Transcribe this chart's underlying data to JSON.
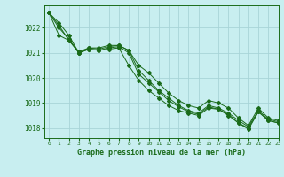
{
  "title": "Graphe pression niveau de la mer (hPa)",
  "bg_color": "#c8eef0",
  "grid_color": "#a8d4d8",
  "line_color": "#1a6b1a",
  "marker_color": "#1a6b1a",
  "xlim": [
    -0.5,
    23
  ],
  "ylim": [
    1017.6,
    1022.9
  ],
  "yticks": [
    1018,
    1019,
    1020,
    1021,
    1022
  ],
  "xticks": [
    0,
    1,
    2,
    3,
    4,
    5,
    6,
    7,
    8,
    9,
    10,
    11,
    12,
    13,
    14,
    15,
    16,
    17,
    18,
    19,
    20,
    21,
    22,
    23
  ],
  "series": [
    [
      1022.6,
      1022.2,
      1021.7,
      1021.0,
      1021.2,
      1021.2,
      1021.3,
      1021.3,
      1021.1,
      1020.5,
      1020.2,
      1019.8,
      1019.4,
      1019.1,
      1018.9,
      1018.8,
      1019.1,
      1019.0,
      1018.8,
      1018.4,
      1018.1,
      1018.8,
      1018.4,
      1018.3
    ],
    [
      1022.6,
      1022.1,
      1021.5,
      1021.05,
      1021.2,
      1021.15,
      1021.25,
      1021.3,
      1021.1,
      1020.3,
      1019.9,
      1019.5,
      1019.2,
      1018.9,
      1018.7,
      1018.6,
      1018.9,
      1018.8,
      1018.6,
      1018.3,
      1018.05,
      1018.7,
      1018.35,
      1018.25
    ],
    [
      1022.6,
      1022.0,
      1021.55,
      1021.0,
      1021.15,
      1021.1,
      1021.2,
      1021.25,
      1021.0,
      1020.15,
      1019.8,
      1019.45,
      1019.1,
      1018.85,
      1018.65,
      1018.55,
      1018.85,
      1018.75,
      1018.55,
      1018.2,
      1018.0,
      1018.65,
      1018.3,
      1018.2
    ],
    [
      1022.6,
      1021.7,
      1021.5,
      1021.0,
      1021.15,
      1021.1,
      1021.15,
      1021.2,
      1020.5,
      1019.9,
      1019.5,
      1019.2,
      1018.9,
      1018.7,
      1018.6,
      1018.5,
      1018.8,
      1018.75,
      1018.5,
      1018.2,
      1017.95,
      1018.65,
      1018.3,
      1018.2
    ]
  ]
}
